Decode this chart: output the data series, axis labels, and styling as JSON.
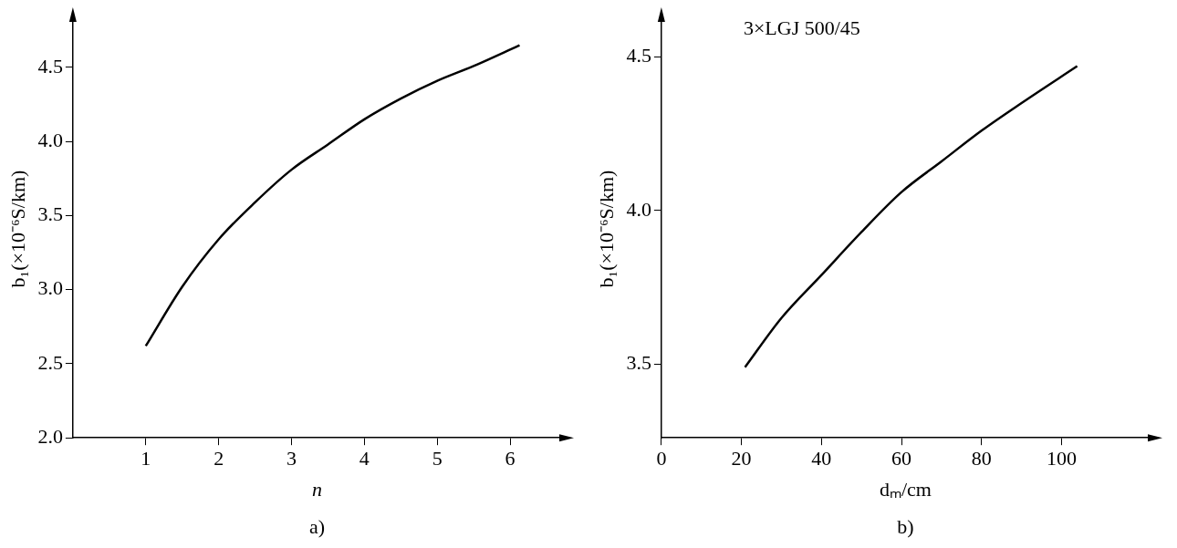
{
  "chart_data": [
    {
      "type": "line",
      "xlabel": "n",
      "ylabel": "b₁(×10⁻⁶S/km)",
      "annotations": [
        "a)"
      ],
      "x": [
        1,
        1.5,
        2,
        2.5,
        3,
        3.5,
        4,
        4.5,
        5,
        5.5,
        6.13
      ],
      "series": [
        {
          "color": "#000000",
          "values": [
            2.62,
            3.02,
            3.34,
            3.59,
            3.81,
            3.98,
            4.15,
            4.29,
            4.41,
            4.51,
            4.65
          ]
        }
      ],
      "xlim": [
        0,
        6.7
      ],
      "xticks": [
        1,
        2,
        3,
        4,
        5,
        6
      ],
      "ylim": [
        2.0,
        4.82
      ],
      "yticks": [
        {
          "value": 2,
          "label": "2.0"
        },
        2.5,
        {
          "value": 3,
          "label": "3.0"
        },
        3.5,
        {
          "value": 4,
          "label": "4.0"
        },
        4.5
      ],
      "grid": false,
      "legend": false,
      "marker": "none",
      "line_style": "solid"
    },
    {
      "type": "line",
      "xlabel": "dₘ/cm",
      "ylabel": "b₁(×10⁻⁶S/km)",
      "annotations": [
        "3×LGJ 500/45",
        "b)"
      ],
      "x": [
        20.9,
        30,
        40,
        50,
        60,
        70,
        80,
        90,
        103.9
      ],
      "series": [
        {
          "color": "#000000",
          "values": [
            3.49,
            3.65,
            3.79,
            3.93,
            4.06,
            4.16,
            4.26,
            4.35,
            4.47
          ]
        }
      ],
      "xlim": [
        0,
        122
      ],
      "xticks": [
        0,
        20,
        40,
        60,
        80,
        100
      ],
      "ylim": [
        3.26,
        4.62
      ],
      "yticks": [
        3.5,
        {
          "value": 4,
          "label": "4.0"
        },
        4.5
      ],
      "grid": false,
      "legend": false,
      "marker": "none",
      "line_style": "solid"
    }
  ]
}
